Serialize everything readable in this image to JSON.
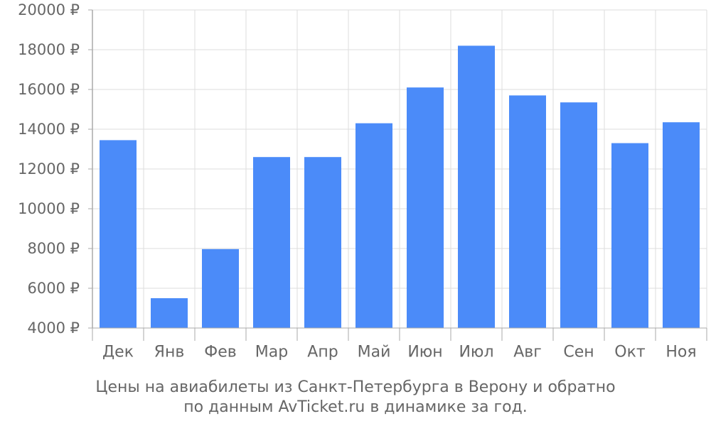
{
  "chart_data": {
    "type": "bar",
    "categories": [
      "Дек",
      "Янв",
      "Фев",
      "Мар",
      "Апр",
      "Май",
      "Июн",
      "Июл",
      "Авг",
      "Сен",
      "Окт",
      "Ноя"
    ],
    "values": [
      13450,
      5500,
      7970,
      12600,
      12600,
      14300,
      16100,
      18200,
      15700,
      15350,
      13300,
      14350
    ],
    "ylim": [
      4000,
      20000
    ],
    "yticks": [
      "4000 ₽",
      "6000 ₽",
      "8000 ₽",
      "10000 ₽",
      "12000 ₽",
      "14000 ₽",
      "16000 ₽",
      "18000 ₽",
      "20000 ₽"
    ],
    "ytick_values": [
      4000,
      6000,
      8000,
      10000,
      12000,
      14000,
      16000,
      18000,
      20000
    ],
    "grid": true,
    "bar_color": "#4b8bf9",
    "grid_color": "#dddddd",
    "axis_color": "#aaaaaa",
    "text_color": "#666666",
    "caption_line1": "Цены на авиабилеты из Санкт-Петербурга в Верону и обратно",
    "caption_line2": "по данным AvTicket.ru в динамике за год."
  }
}
